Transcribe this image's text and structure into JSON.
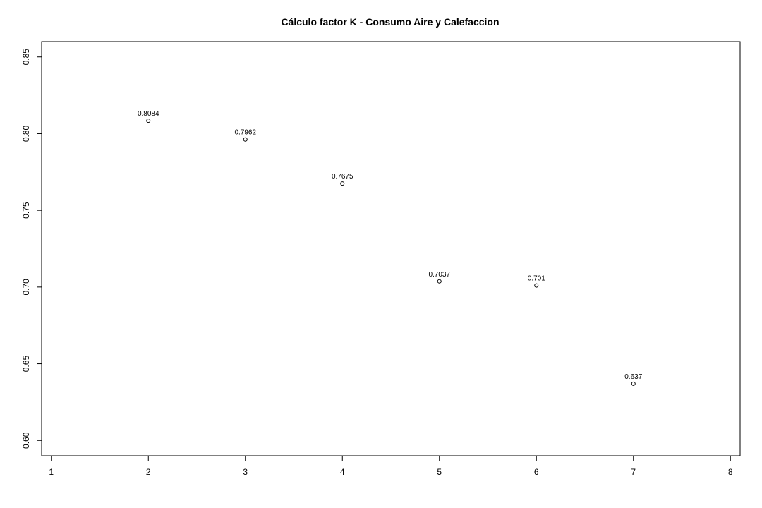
{
  "chart_data": {
    "type": "scatter",
    "title": "Cálculo factor K - Consumo Aire y Calefaccion",
    "xlabel": "",
    "ylabel": "",
    "xlim": [
      0.9,
      8.1
    ],
    "ylim": [
      0.59,
      0.86
    ],
    "xticks": [
      1,
      2,
      3,
      4,
      5,
      6,
      7,
      8
    ],
    "yticks": [
      0.6,
      0.65,
      0.7,
      0.75,
      0.8,
      0.85
    ],
    "xtick_labels": [
      "1",
      "2",
      "3",
      "4",
      "5",
      "6",
      "7",
      "8"
    ],
    "ytick_labels": [
      "0.60",
      "0.65",
      "0.70",
      "0.75",
      "0.80",
      "0.85"
    ],
    "grid": false,
    "legend": false,
    "series": [
      {
        "x": [
          2,
          3,
          4,
          5,
          6,
          7
        ],
        "values": [
          0.8084,
          0.7962,
          0.7675,
          0.7037,
          0.701,
          0.637
        ],
        "labels": [
          "0.8084",
          "0.7962",
          "0.7675",
          "0.7037",
          "0.701",
          "0.637"
        ]
      }
    ]
  }
}
